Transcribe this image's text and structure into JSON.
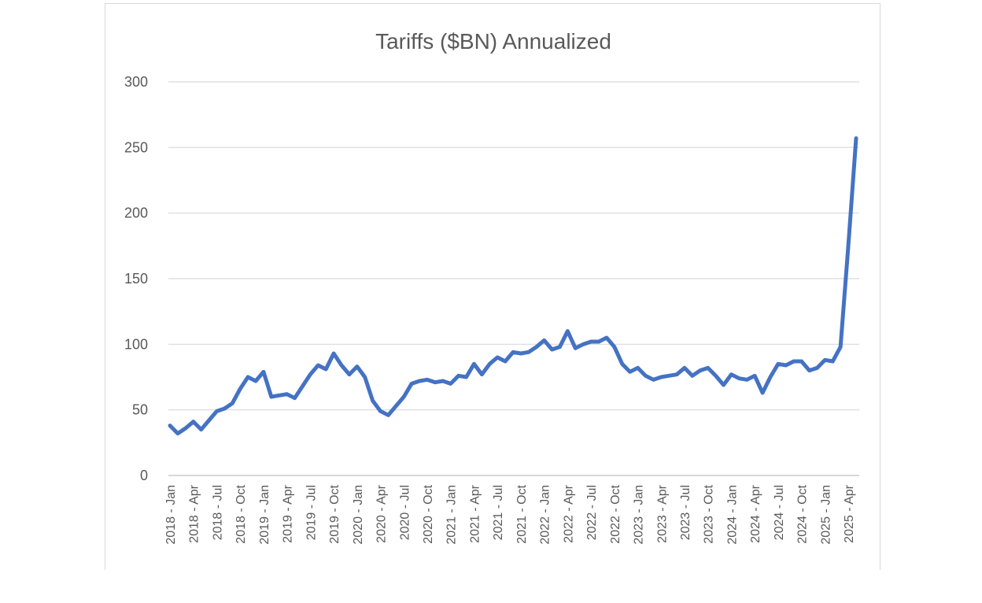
{
  "chart_data": {
    "type": "line",
    "title": "Tariffs ($BN) Annualized",
    "xlabel": "",
    "ylabel": "",
    "ylim": [
      0,
      300
    ],
    "yticks": [
      0,
      50,
      100,
      150,
      200,
      250,
      300
    ],
    "grid": true,
    "legend": "none",
    "colors": {
      "line": "#4472c4",
      "grid": "#d9d9d9",
      "text": "#595959"
    },
    "x_tick_labels": [
      "2018 - Jan",
      "2018 - Apr",
      "2018 - Jul",
      "2018 - Oct",
      "2019 - Jan",
      "2019 - Apr",
      "2019 - Jul",
      "2019 - Oct",
      "2020 - Jan",
      "2020 - Apr",
      "2020 - Jul",
      "2020 - Oct",
      "2021 - Jan",
      "2021 - Apr",
      "2021 - Jul",
      "2021 - Oct",
      "2022 - Jan",
      "2022 - Apr",
      "2022 - Jul",
      "2022 - Oct",
      "2023 - Jan",
      "2023 - Apr",
      "2023 - Jul",
      "2023 - Oct",
      "2024 - Jan",
      "2024 - Apr",
      "2024 - Jul",
      "2024 - Oct",
      "2025 - Jan",
      "2025 - Apr"
    ],
    "x": [
      "2018-01",
      "2018-02",
      "2018-03",
      "2018-04",
      "2018-05",
      "2018-06",
      "2018-07",
      "2018-08",
      "2018-09",
      "2018-10",
      "2018-11",
      "2018-12",
      "2019-01",
      "2019-02",
      "2019-03",
      "2019-04",
      "2019-05",
      "2019-06",
      "2019-07",
      "2019-08",
      "2019-09",
      "2019-10",
      "2019-11",
      "2019-12",
      "2020-01",
      "2020-02",
      "2020-03",
      "2020-04",
      "2020-05",
      "2020-06",
      "2020-07",
      "2020-08",
      "2020-09",
      "2020-10",
      "2020-11",
      "2020-12",
      "2021-01",
      "2021-02",
      "2021-03",
      "2021-04",
      "2021-05",
      "2021-06",
      "2021-07",
      "2021-08",
      "2021-09",
      "2021-10",
      "2021-11",
      "2021-12",
      "2022-01",
      "2022-02",
      "2022-03",
      "2022-04",
      "2022-05",
      "2022-06",
      "2022-07",
      "2022-08",
      "2022-09",
      "2022-10",
      "2022-11",
      "2022-12",
      "2023-01",
      "2023-02",
      "2023-03",
      "2023-04",
      "2023-05",
      "2023-06",
      "2023-07",
      "2023-08",
      "2023-09",
      "2023-10",
      "2023-11",
      "2023-12",
      "2024-01",
      "2024-02",
      "2024-03",
      "2024-04",
      "2024-05",
      "2024-06",
      "2024-07",
      "2024-08",
      "2024-09",
      "2024-10",
      "2024-11",
      "2024-12",
      "2025-01",
      "2025-02",
      "2025-03",
      "2025-04",
      "2025-05"
    ],
    "series": [
      {
        "values": [
          38,
          32,
          36,
          41,
          35,
          42,
          49,
          51,
          55,
          66,
          75,
          72,
          79,
          60,
          61,
          62,
          59,
          68,
          77,
          84,
          81,
          93,
          84,
          77,
          83,
          75,
          57,
          49,
          46,
          53,
          60,
          70,
          72,
          73,
          71,
          72,
          70,
          76,
          75,
          85,
          77,
          85,
          90,
          87,
          94,
          93,
          94,
          98,
          103,
          96,
          98,
          110,
          97,
          100,
          102,
          102,
          105,
          98,
          85,
          79,
          82,
          76,
          73,
          75,
          76,
          77,
          82,
          76,
          80,
          82,
          76,
          69,
          77,
          74,
          73,
          76,
          63,
          75,
          85,
          84,
          87,
          87,
          80,
          82,
          88,
          87,
          98,
          175,
          257
        ]
      }
    ]
  }
}
